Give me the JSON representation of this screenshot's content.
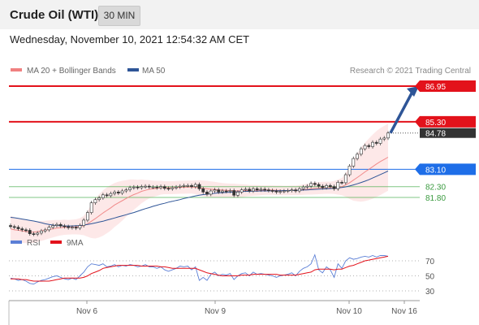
{
  "header": {
    "title": "Crude Oil (WTI)",
    "timeframe": "30 MIN"
  },
  "datetime": "Wednesday, November 10, 2021 12:54:32 AM CET",
  "legend": {
    "ma20_label": "MA 20 + Bollinger Bands",
    "ma50_label": "MA 50",
    "credit": "Research © 2021 Trading Central",
    "ma20_color": "#f08080",
    "ma50_color": "#2e5597"
  },
  "rsi_legend": {
    "rsi_label": "RSI",
    "ma_label": "9MA",
    "rsi_color": "#5b7fd6",
    "ma_color": "#e3121b"
  },
  "colors": {
    "resistance": "#e3121b",
    "pivot": "#1e6ee8",
    "support": "#4caf50",
    "arrow": "#2e5597"
  },
  "chart_data": [
    {
      "type": "candlestick",
      "x_ticks": [
        "Nov 6",
        "Nov 9",
        "Nov 10",
        "Nov 16"
      ],
      "ylim": [
        79.95,
        87.5
      ],
      "levels": [
        {
          "label": "86.95",
          "value": 86.95,
          "kind": "resistance"
        },
        {
          "label": "85.30",
          "value": 85.3,
          "kind": "resistance"
        },
        {
          "label": "84.78",
          "value": 84.78,
          "kind": "last_price"
        },
        {
          "label": "83.10",
          "value": 83.1,
          "kind": "pivot"
        },
        {
          "label": "82.30",
          "value": 82.3,
          "kind": "support"
        },
        {
          "label": "81.80",
          "value": 81.8,
          "kind": "support"
        }
      ],
      "close_series": [
        80.45,
        80.42,
        80.35,
        80.3,
        80.28,
        80.12,
        80.1,
        80.15,
        80.25,
        80.3,
        80.42,
        80.5,
        80.55,
        80.48,
        80.45,
        80.4,
        80.42,
        80.38,
        80.5,
        80.75,
        81.1,
        81.55,
        81.7,
        81.78,
        81.92,
        81.88,
        81.98,
        82.05,
        82.0,
        82.1,
        82.15,
        82.25,
        82.28,
        82.25,
        82.3,
        82.32,
        82.28,
        82.28,
        82.25,
        82.3,
        82.22,
        82.2,
        82.25,
        82.28,
        82.32,
        82.35,
        82.35,
        82.3,
        82.4,
        82.2,
        82.05,
        81.95,
        82.1,
        82.15,
        82.05,
        82.1,
        82.08,
        82.12,
        81.9,
        82.05,
        82.15,
        82.18,
        82.1,
        82.2,
        82.15,
        82.18,
        82.15,
        82.12,
        82.1,
        82.05,
        82.08,
        82.1,
        82.12,
        82.15,
        82.1,
        82.2,
        82.28,
        82.32,
        82.45,
        82.4,
        82.32,
        82.25,
        82.35,
        82.3,
        82.2,
        82.5,
        82.48,
        82.85,
        83.25,
        83.6,
        83.8,
        84.05,
        84.2,
        84.15,
        84.35,
        84.3,
        84.5,
        84.55,
        84.78
      ],
      "ma20": [
        80.35,
        80.3,
        80.28,
        80.25,
        80.22,
        80.2,
        80.2,
        80.22,
        80.25,
        80.28,
        80.32,
        80.35,
        80.38,
        80.4,
        80.42,
        80.42,
        80.43,
        80.44,
        80.46,
        80.5,
        80.58,
        80.7,
        80.82,
        80.95,
        81.08,
        81.2,
        81.32,
        81.45,
        81.55,
        81.65,
        81.75,
        81.85,
        81.93,
        82.0,
        82.08,
        82.13,
        82.18,
        82.2,
        82.22,
        82.25,
        82.25,
        82.25,
        82.25,
        82.26,
        82.27,
        82.27,
        82.28,
        82.28,
        82.27,
        82.25,
        82.22,
        82.2,
        82.18,
        82.17,
        82.15,
        82.14,
        82.13,
        82.12,
        82.11,
        82.1,
        82.11,
        82.12,
        82.12,
        82.13,
        82.13,
        82.13,
        82.14,
        82.14,
        82.14,
        82.13,
        82.13,
        82.12,
        82.12,
        82.13,
        82.13,
        82.14,
        82.16,
        82.18,
        82.2,
        82.22,
        82.23,
        82.24,
        82.25,
        82.25,
        82.26,
        82.28,
        82.3,
        82.38,
        82.48,
        82.6,
        82.72,
        82.85,
        82.98,
        83.1,
        83.22,
        83.35,
        83.46,
        83.56,
        83.66
      ],
      "ma50": [
        80.88,
        80.86,
        80.83,
        80.8,
        80.77,
        80.74,
        80.71,
        80.67,
        80.63,
        80.58,
        80.55,
        80.52,
        80.5,
        80.49,
        80.48,
        80.48,
        80.48,
        80.49,
        80.5,
        80.52,
        80.55,
        80.58,
        80.62,
        80.66,
        80.7,
        80.75,
        80.8,
        80.85,
        80.9,
        80.95,
        81.0,
        81.05,
        81.1,
        81.16,
        81.22,
        81.28,
        81.33,
        81.39,
        81.44,
        81.49,
        81.53,
        81.58,
        81.62,
        81.66,
        81.7,
        81.75,
        81.79,
        81.83,
        81.87,
        81.9,
        81.93,
        81.95,
        81.97,
        81.99,
        82.01,
        82.02,
        82.03,
        82.04,
        82.05,
        82.06,
        82.07,
        82.08,
        82.08,
        82.09,
        82.09,
        82.1,
        82.1,
        82.1,
        82.11,
        82.11,
        82.11,
        82.12,
        82.12,
        82.12,
        82.13,
        82.13,
        82.14,
        82.15,
        82.16,
        82.17,
        82.18,
        82.19,
        82.2,
        82.21,
        82.22,
        82.24,
        82.26,
        82.29,
        82.33,
        82.38,
        82.43,
        82.49,
        82.55,
        82.62,
        82.7,
        82.78,
        82.86,
        82.94,
        83.02
      ],
      "bollinger_width": [
        0.6,
        0.58,
        0.56,
        0.55,
        0.54,
        0.52,
        0.5,
        0.48,
        0.46,
        0.44,
        0.42,
        0.4,
        0.38,
        0.36,
        0.35,
        0.34,
        0.34,
        0.35,
        0.38,
        0.45,
        0.6,
        0.78,
        0.92,
        1.0,
        1.05,
        1.06,
        1.05,
        1.02,
        0.98,
        0.92,
        0.85,
        0.78,
        0.7,
        0.62,
        0.55,
        0.48,
        0.42,
        0.38,
        0.35,
        0.32,
        0.3,
        0.3,
        0.3,
        0.3,
        0.3,
        0.3,
        0.3,
        0.3,
        0.32,
        0.35,
        0.36,
        0.37,
        0.36,
        0.35,
        0.34,
        0.33,
        0.32,
        0.32,
        0.33,
        0.32,
        0.3,
        0.28,
        0.26,
        0.25,
        0.24,
        0.23,
        0.22,
        0.22,
        0.22,
        0.22,
        0.22,
        0.22,
        0.22,
        0.22,
        0.22,
        0.23,
        0.24,
        0.25,
        0.27,
        0.28,
        0.28,
        0.28,
        0.28,
        0.28,
        0.3,
        0.35,
        0.4,
        0.55,
        0.75,
        0.95,
        1.1,
        1.25,
        1.35,
        1.42,
        1.48,
        1.52,
        1.55,
        1.55,
        1.55
      ],
      "forecast_arrow": {
        "from": 84.78,
        "to": 86.95
      }
    },
    {
      "type": "line",
      "title": "RSI",
      "y_ticks": [
        30,
        50,
        70
      ],
      "ylim": [
        20,
        80
      ],
      "series": [
        {
          "name": "RSI",
          "values": [
            47,
            46,
            44,
            45,
            43,
            40,
            39,
            42,
            44,
            45,
            47,
            49,
            50,
            48,
            46,
            45,
            47,
            45,
            50,
            55,
            62,
            66,
            65,
            64,
            66,
            62,
            63,
            65,
            62,
            64,
            63,
            65,
            64,
            62,
            63,
            65,
            62,
            62,
            60,
            62,
            58,
            56,
            58,
            60,
            63,
            62,
            63,
            58,
            62,
            44,
            48,
            44,
            52,
            55,
            50,
            52,
            51,
            53,
            45,
            50,
            53,
            54,
            50,
            55,
            52,
            53,
            52,
            51,
            50,
            48,
            50,
            51,
            52,
            54,
            50,
            56,
            60,
            62,
            66,
            78,
            58,
            54,
            62,
            58,
            48,
            66,
            60,
            70,
            74,
            72,
            73,
            75,
            76,
            75,
            77,
            75,
            77,
            77,
            76
          ]
        },
        {
          "name": "9MA",
          "values": [
            46,
            46,
            46,
            45,
            45,
            44,
            43,
            43,
            43,
            43,
            43,
            44,
            45,
            46,
            47,
            47,
            47,
            47,
            47,
            48,
            50,
            53,
            55,
            57,
            60,
            61,
            62,
            63,
            64,
            64,
            64,
            64,
            64,
            64,
            63,
            63,
            63,
            63,
            63,
            62,
            62,
            61,
            60,
            60,
            60,
            60,
            60,
            60,
            60,
            58,
            56,
            54,
            53,
            52,
            51,
            50,
            50,
            50,
            50,
            50,
            51,
            51,
            51,
            52,
            52,
            52,
            52,
            52,
            52,
            52,
            51,
            51,
            51,
            51,
            51,
            52,
            53,
            54,
            55,
            58,
            59,
            59,
            59,
            59,
            58,
            59,
            59,
            61,
            63,
            64,
            66,
            68,
            70,
            71,
            72,
            73,
            74,
            75,
            76
          ]
        }
      ]
    }
  ]
}
